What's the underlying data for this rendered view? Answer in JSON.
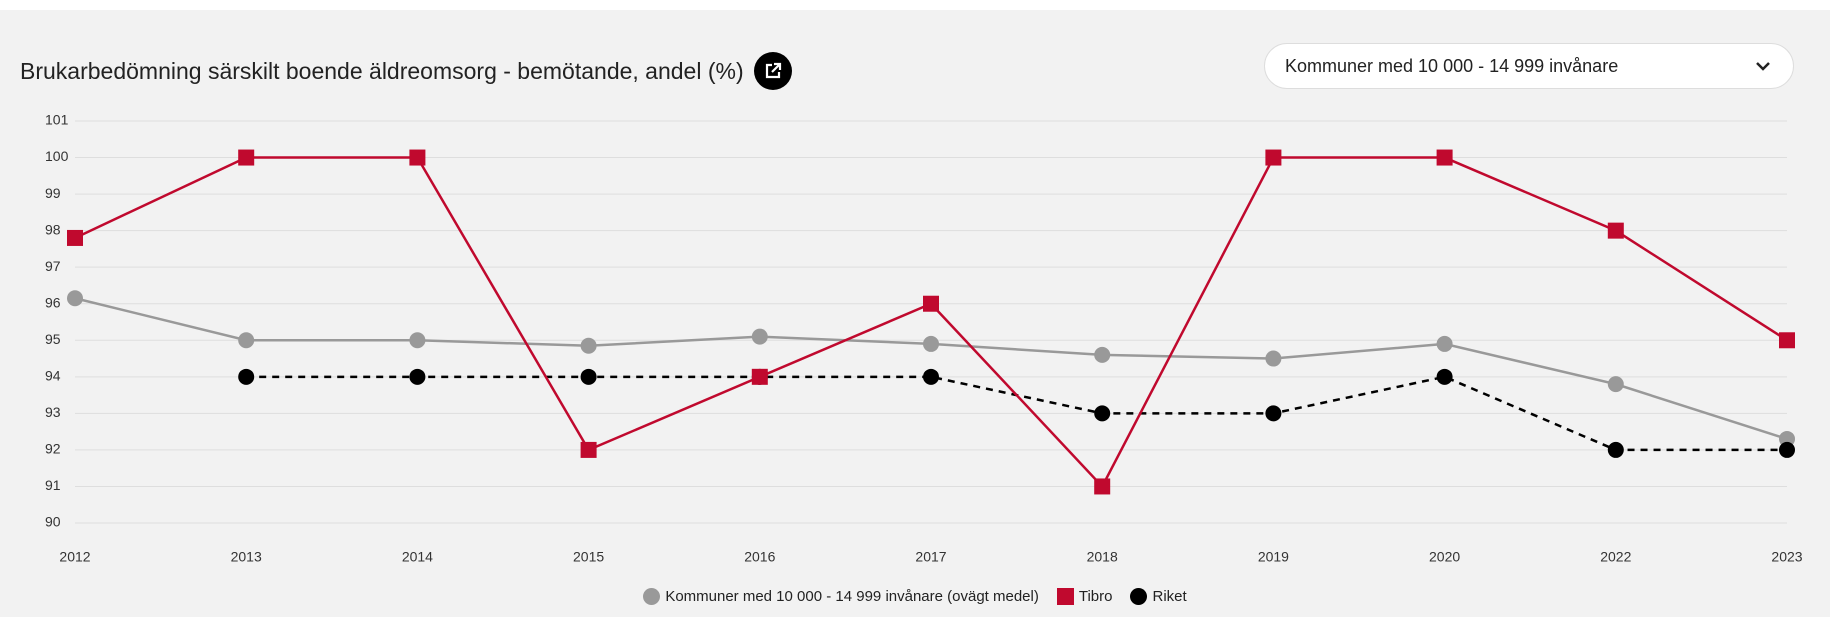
{
  "chart_data": {
    "type": "line",
    "title": "Brukarbedömning särskilt boende äldreomsorg - bemötande, andel (%)",
    "selector": "Kommuner med 10 000 - 14 999 invånare",
    "categories": [
      "2012",
      "2013",
      "2014",
      "2015",
      "2016",
      "2017",
      "2018",
      "2019",
      "2020",
      "2022",
      "2023"
    ],
    "series": [
      {
        "name": "Kommuner med 10 000 - 14 999 invånare (ovägt medel)",
        "color": "#999999",
        "marker": "circle",
        "dashed": false,
        "values": [
          96.15,
          95,
          95,
          94.85,
          95.1,
          94.9,
          94.6,
          94.5,
          94.9,
          93.8,
          92.3
        ]
      },
      {
        "name": "Tibro",
        "color": "#c0092e",
        "marker": "square",
        "dashed": false,
        "values": [
          97.8,
          100,
          100,
          92,
          94,
          96,
          91,
          100,
          100,
          98,
          95
        ]
      },
      {
        "name": "Riket",
        "color": "#000000",
        "marker": "circle",
        "dashed": true,
        "values": [
          null,
          94,
          94,
          94,
          94,
          94,
          93,
          93,
          94,
          92,
          92
        ]
      }
    ],
    "ylim": [
      90,
      101
    ],
    "yticks": [
      90,
      91,
      92,
      93,
      94,
      95,
      96,
      97,
      98,
      99,
      100,
      101
    ],
    "grid": true,
    "legend": "bottom"
  }
}
